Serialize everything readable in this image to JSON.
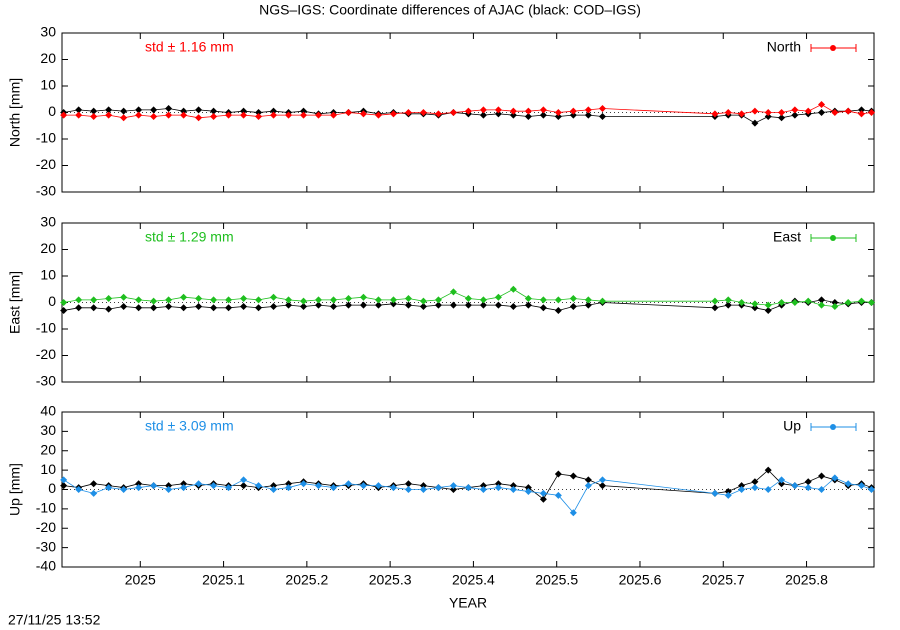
{
  "title": "NGS–IGS: Coordinate differences of AJAC (black: COD–IGS)",
  "footer": "27/11/25 13:52",
  "chart_data": [
    {
      "type": "line",
      "ylabel": "North [mm]",
      "annotation": "std ± 1.16 mm",
      "legend": "top-right",
      "xlim": [
        2024.906,
        2025.881
      ],
      "ylim": [
        -30,
        30
      ],
      "yticks": [
        -30,
        -20,
        -10,
        0,
        10,
        20,
        30
      ],
      "xticks": [
        2025,
        2025.1,
        2025.2,
        2025.3,
        2025.4,
        2025.5,
        2025.6,
        2025.7,
        2025.8
      ],
      "show_xtick_labels": false,
      "x": [
        2024.908,
        2024.926,
        2024.944,
        2024.962,
        2024.98,
        2024.998,
        2025.016,
        2025.034,
        2025.052,
        2025.07,
        2025.088,
        2025.106,
        2025.124,
        2025.142,
        2025.16,
        2025.178,
        2025.196,
        2025.214,
        2025.232,
        2025.25,
        2025.268,
        2025.286,
        2025.304,
        2025.322,
        2025.34,
        2025.358,
        2025.376,
        2025.394,
        2025.412,
        2025.43,
        2025.448,
        2025.466,
        2025.484,
        2025.502,
        2025.52,
        2025.538,
        2025.555,
        2025.69,
        2025.706,
        2025.722,
        2025.738,
        2025.754,
        2025.77,
        2025.786,
        2025.802,
        2025.818,
        2025.834,
        2025.85,
        2025.866,
        2025.878
      ],
      "series": [
        {
          "color": "#000000",
          "values": [
            0,
            1,
            0.5,
            1,
            0.5,
            1,
            1,
            1.5,
            0.5,
            1,
            0.5,
            0,
            0.5,
            0,
            0.5,
            0,
            0.5,
            -0.5,
            0,
            0,
            0.5,
            -0.5,
            0,
            -0.5,
            -0.5,
            -1,
            0,
            -0.5,
            -1,
            -0.5,
            -1,
            -1.5,
            -1,
            -1.5,
            -1,
            -1,
            -1.5,
            -1.5,
            -1,
            -1,
            -4,
            -1.5,
            -2,
            -1,
            -0.5,
            0,
            0.5,
            0.5,
            1,
            0.5
          ]
        },
        {
          "name": "North",
          "color": "#ff0000",
          "values": [
            -1,
            -1,
            -1.5,
            -1,
            -2,
            -1,
            -1.5,
            -1,
            -1,
            -2,
            -1.5,
            -1,
            -1,
            -1.5,
            -1,
            -1,
            -1,
            -1,
            -1,
            0,
            -0.5,
            -1,
            -0.5,
            0,
            0,
            -0.5,
            0,
            0.5,
            1,
            1,
            0.5,
            0.5,
            1,
            0,
            0.5,
            1,
            1.5,
            -0.5,
            0,
            -0.5,
            0.5,
            0,
            0,
            1,
            0.5,
            3,
            0,
            0.5,
            -0.5,
            0
          ]
        }
      ]
    },
    {
      "type": "line",
      "ylabel": "East [mm]",
      "annotation": "std ± 1.29 mm",
      "legend": "top-right",
      "xlim": [
        2024.906,
        2025.881
      ],
      "ylim": [
        -30,
        30
      ],
      "yticks": [
        -30,
        -20,
        -10,
        0,
        10,
        20,
        30
      ],
      "xticks": [
        2025,
        2025.1,
        2025.2,
        2025.3,
        2025.4,
        2025.5,
        2025.6,
        2025.7,
        2025.8
      ],
      "show_xtick_labels": false,
      "x": [
        2024.908,
        2024.926,
        2024.944,
        2024.962,
        2024.98,
        2024.998,
        2025.016,
        2025.034,
        2025.052,
        2025.07,
        2025.088,
        2025.106,
        2025.124,
        2025.142,
        2025.16,
        2025.178,
        2025.196,
        2025.214,
        2025.232,
        2025.25,
        2025.268,
        2025.286,
        2025.304,
        2025.322,
        2025.34,
        2025.358,
        2025.376,
        2025.394,
        2025.412,
        2025.43,
        2025.448,
        2025.466,
        2025.484,
        2025.502,
        2025.52,
        2025.538,
        2025.555,
        2025.69,
        2025.706,
        2025.722,
        2025.738,
        2025.754,
        2025.77,
        2025.786,
        2025.802,
        2025.818,
        2025.834,
        2025.85,
        2025.866,
        2025.878
      ],
      "series": [
        {
          "color": "#000000",
          "values": [
            -3,
            -2,
            -2,
            -2.5,
            -1.5,
            -2,
            -2,
            -1.5,
            -2,
            -1.5,
            -2,
            -2,
            -1.5,
            -2,
            -1.5,
            -1,
            -1.5,
            -1,
            -1.5,
            -1,
            -1,
            -1,
            -0.5,
            -1,
            -1.5,
            -1,
            -1,
            -1,
            -1,
            -1,
            -1.5,
            -1,
            -2,
            -3,
            -1.5,
            -1,
            0,
            -2,
            -1,
            -1,
            -2,
            -3,
            -1,
            0.5,
            0,
            1,
            0,
            -0.5,
            0,
            0
          ]
        },
        {
          "name": "East",
          "color": "#1fbf1f",
          "values": [
            0,
            1,
            1,
            1.5,
            2,
            1,
            0.5,
            1,
            2,
            1.5,
            1,
            1,
            1.5,
            1,
            2,
            1,
            0.5,
            1,
            1,
            1.5,
            2,
            1,
            1,
            1.5,
            0.5,
            1,
            4,
            1.5,
            1,
            2,
            5,
            1.5,
            1,
            1,
            1.5,
            1,
            0.5,
            0.5,
            1,
            0,
            -0.5,
            -1,
            0,
            0,
            0.5,
            -1,
            -1.5,
            0,
            0.5,
            0
          ]
        }
      ]
    },
    {
      "type": "line",
      "ylabel": "Up [mm]",
      "annotation": "std ± 3.09 mm",
      "legend": "top-right",
      "xlabel": "YEAR",
      "xlim": [
        2024.906,
        2025.881
      ],
      "ylim": [
        -40,
        40
      ],
      "yticks": [
        -40,
        -30,
        -20,
        -10,
        0,
        10,
        20,
        30,
        40
      ],
      "xticks": [
        2025,
        2025.1,
        2025.2,
        2025.3,
        2025.4,
        2025.5,
        2025.6,
        2025.7,
        2025.8
      ],
      "show_xtick_labels": true,
      "x": [
        2024.908,
        2024.926,
        2024.944,
        2024.962,
        2024.98,
        2024.998,
        2025.016,
        2025.034,
        2025.052,
        2025.07,
        2025.088,
        2025.106,
        2025.124,
        2025.142,
        2025.16,
        2025.178,
        2025.196,
        2025.214,
        2025.232,
        2025.25,
        2025.268,
        2025.286,
        2025.304,
        2025.322,
        2025.34,
        2025.358,
        2025.376,
        2025.394,
        2025.412,
        2025.43,
        2025.448,
        2025.466,
        2025.484,
        2025.502,
        2025.52,
        2025.538,
        2025.555,
        2025.69,
        2025.706,
        2025.722,
        2025.738,
        2025.754,
        2025.77,
        2025.786,
        2025.802,
        2025.818,
        2025.834,
        2025.85,
        2025.866,
        2025.878
      ],
      "series": [
        {
          "color": "#000000",
          "values": [
            2,
            1,
            3,
            2,
            1,
            3,
            2,
            2,
            3,
            2,
            3,
            2,
            2,
            1,
            2,
            3,
            4,
            3,
            2,
            2,
            3,
            1,
            2,
            3,
            2,
            1,
            0,
            1,
            2,
            3,
            2,
            1,
            -5,
            8,
            7,
            5,
            2,
            -2,
            -1,
            2,
            4,
            10,
            3,
            2,
            4,
            7,
            5,
            2,
            3,
            1
          ]
        },
        {
          "name": "Up",
          "color": "#1e8fe6",
          "values": [
            5,
            0,
            -2,
            1,
            0,
            1,
            2,
            0,
            1,
            3,
            2,
            1,
            5,
            2,
            0,
            1,
            3,
            2,
            1,
            3,
            2,
            2,
            1,
            0,
            0,
            1,
            2,
            1,
            0,
            1,
            0,
            -1,
            -2,
            -3,
            -12,
            2,
            5,
            -2,
            -3,
            0,
            1,
            0,
            5,
            2,
            1,
            0,
            6,
            3,
            2,
            0
          ]
        }
      ]
    }
  ]
}
